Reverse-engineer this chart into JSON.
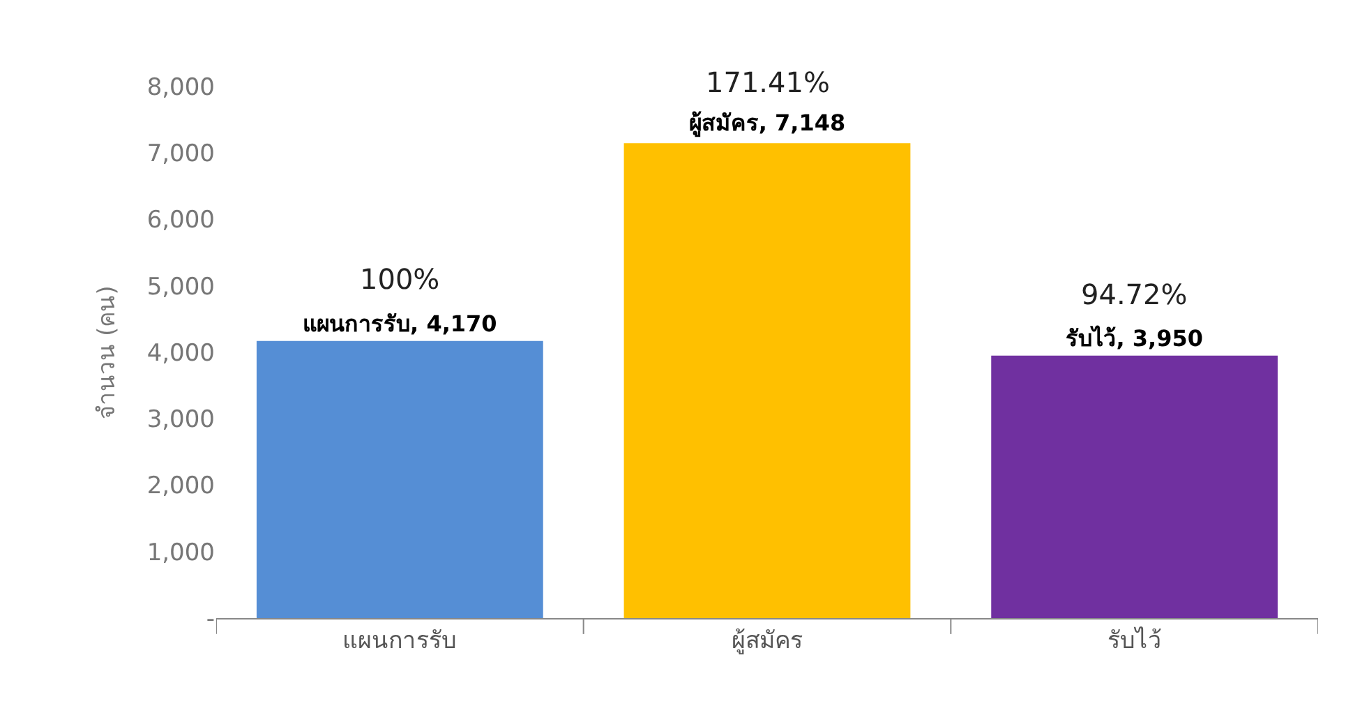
{
  "chart_data": {
    "type": "bar",
    "ylabel": "จำนวน (คน)",
    "categories": [
      "แผนการรับ",
      "ผู้สมัคร",
      "รับไว้"
    ],
    "values": [
      4170,
      7148,
      3950
    ],
    "colors": [
      "#558ed5",
      "#ffc000",
      "#7030a0"
    ],
    "value_labels": [
      "แผนการรับ, 4,170",
      "ผู้สมัคร, 7,148",
      "รับไว้, 3,950"
    ],
    "annotations": [
      {
        "text": "100%",
        "x": "แผนการรับ",
        "y": 4170
      },
      {
        "text": "171.41%",
        "x": "ผู้สมัคร",
        "y": 7148
      },
      {
        "text": "94.72%",
        "x": "รับไว้",
        "y": 3950
      }
    ],
    "ylim": [
      0,
      8000
    ],
    "yticks": [
      {
        "value": 0,
        "label": "-"
      },
      {
        "value": 1000,
        "label": "1,000"
      },
      {
        "value": 2000,
        "label": "2,000"
      },
      {
        "value": 3000,
        "label": "3,000"
      },
      {
        "value": 4000,
        "label": "4,000"
      },
      {
        "value": 5000,
        "label": "5,000"
      },
      {
        "value": 6000,
        "label": "6,000"
      },
      {
        "value": 7000,
        "label": "7,000"
      },
      {
        "value": 8000,
        "label": "8,000"
      }
    ],
    "grid": false
  }
}
